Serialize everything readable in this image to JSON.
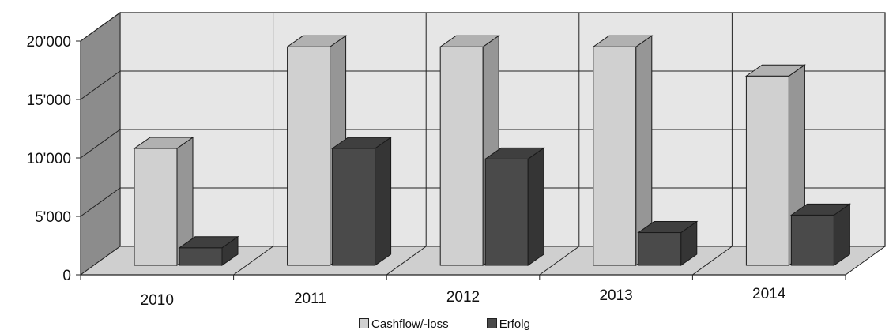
{
  "chart_data": {
    "type": "bar",
    "categories": [
      "2010",
      "2011",
      "2012",
      "2013",
      "2014"
    ],
    "series": [
      {
        "name": "Cashflow/-loss",
        "values": [
          10000,
          18700,
          18700,
          18700,
          16200
        ],
        "color": "#d0d0d0"
      },
      {
        "name": "Erfolg",
        "values": [
          1500,
          10000,
          9100,
          2800,
          4300
        ],
        "color": "#4a4a4a"
      }
    ],
    "title": "",
    "xlabel": "",
    "ylabel": "",
    "ylim": [
      0,
      20000
    ],
    "yticks": [
      "0",
      "5'000",
      "10'000",
      "15'000",
      "20'000"
    ],
    "grid": true,
    "legend_position": "bottom",
    "style": "3d-clustered-column"
  }
}
